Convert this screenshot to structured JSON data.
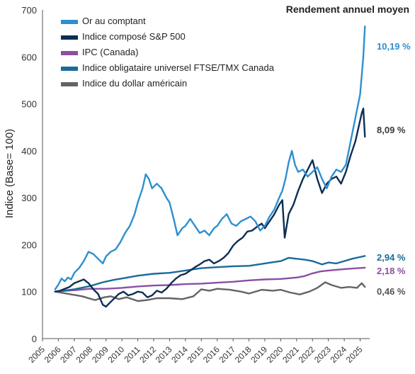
{
  "chart_data": {
    "type": "line",
    "title": "",
    "header": "Rendement annuel moyen",
    "xlabel": "",
    "ylabel": "Indice (Base= 100)",
    "xlim": [
      2005,
      2025.6
    ],
    "ylim": [
      0,
      700
    ],
    "yticks": [
      0,
      100,
      200,
      300,
      400,
      500,
      600,
      700
    ],
    "xticks": [
      "2005",
      "2006",
      "2007",
      "2008",
      "2009",
      "2010",
      "2011",
      "2012",
      "2013",
      "2014",
      "2015",
      "2016",
      "2017",
      "2018",
      "2019",
      "2020",
      "2021",
      "2022",
      "2023",
      "2024",
      "2025"
    ],
    "grid": false,
    "legend_position": "top-left",
    "series": [
      {
        "name": "Or au comptant",
        "color": "#2e8fcf",
        "return": "10,19 %",
        "x": [
          2005.8,
          2006.0,
          2006.2,
          2006.4,
          2006.6,
          2006.8,
          2007.0,
          2007.3,
          2007.6,
          2007.9,
          2008.2,
          2008.5,
          2008.8,
          2009.0,
          2009.3,
          2009.6,
          2009.9,
          2010.2,
          2010.5,
          2010.8,
          2011.0,
          2011.3,
          2011.5,
          2011.7,
          2011.9,
          2012.2,
          2012.5,
          2012.8,
          2013.0,
          2013.3,
          2013.5,
          2013.8,
          2014.0,
          2014.3,
          2014.6,
          2014.9,
          2015.2,
          2015.5,
          2015.8,
          2016.0,
          2016.3,
          2016.6,
          2016.9,
          2017.2,
          2017.5,
          2017.8,
          2018.1,
          2018.4,
          2018.7,
          2019.0,
          2019.3,
          2019.6,
          2019.9,
          2020.1,
          2020.3,
          2020.5,
          2020.7,
          2020.9,
          2021.1,
          2021.4,
          2021.7,
          2022.0,
          2022.3,
          2022.6,
          2022.9,
          2023.2,
          2023.5,
          2023.8,
          2024.1,
          2024.4,
          2024.7,
          2025.0,
          2025.2,
          2025.3
        ],
        "values": [
          105,
          115,
          128,
          122,
          130,
          126,
          140,
          150,
          165,
          185,
          180,
          170,
          160,
          175,
          185,
          190,
          205,
          225,
          240,
          265,
          290,
          320,
          350,
          340,
          320,
          330,
          320,
          300,
          290,
          250,
          220,
          235,
          240,
          255,
          240,
          225,
          230,
          220,
          235,
          240,
          255,
          265,
          245,
          240,
          250,
          255,
          260,
          250,
          230,
          240,
          260,
          275,
          300,
          315,
          340,
          375,
          400,
          370,
          355,
          360,
          345,
          355,
          365,
          340,
          320,
          345,
          360,
          355,
          370,
          420,
          470,
          520,
          600,
          665
        ]
      },
      {
        "name": "Indice composé S&P 500",
        "color": "#0d2e52",
        "return": "8,09 %",
        "x": [
          2005.8,
          2006.1,
          2006.4,
          2006.7,
          2007.0,
          2007.3,
          2007.6,
          2007.9,
          2008.2,
          2008.5,
          2008.8,
          2009.0,
          2009.2,
          2009.5,
          2009.8,
          2010.1,
          2010.4,
          2010.7,
          2011.0,
          2011.3,
          2011.6,
          2011.9,
          2012.2,
          2012.5,
          2012.8,
          2013.1,
          2013.4,
          2013.7,
          2014.0,
          2014.3,
          2014.6,
          2014.9,
          2015.2,
          2015.5,
          2015.8,
          2016.1,
          2016.4,
          2016.7,
          2017.0,
          2017.3,
          2017.6,
          2017.9,
          2018.2,
          2018.5,
          2018.8,
          2019.0,
          2019.3,
          2019.6,
          2019.9,
          2020.1,
          2020.25,
          2020.5,
          2020.8,
          2021.1,
          2021.4,
          2021.7,
          2022.0,
          2022.3,
          2022.6,
          2022.9,
          2023.2,
          2023.5,
          2023.8,
          2024.1,
          2024.4,
          2024.7,
          2024.9,
          2025.1,
          2025.2,
          2025.3
        ],
        "values": [
          100,
          102,
          106,
          110,
          118,
          122,
          126,
          118,
          105,
          95,
          72,
          68,
          75,
          85,
          95,
          100,
          92,
          95,
          100,
          98,
          88,
          92,
          102,
          98,
          106,
          118,
          128,
          135,
          138,
          145,
          152,
          158,
          165,
          168,
          160,
          165,
          172,
          182,
          198,
          208,
          215,
          228,
          230,
          238,
          245,
          235,
          250,
          265,
          285,
          295,
          215,
          265,
          285,
          315,
          340,
          360,
          380,
          340,
          310,
          330,
          340,
          345,
          330,
          355,
          390,
          420,
          450,
          480,
          490,
          430
        ]
      },
      {
        "name": "IPC (Canada)",
        "color": "#8b4fa3",
        "return": "2,18 %",
        "x": [
          2005.8,
          2007,
          2008,
          2009,
          2010,
          2011,
          2012,
          2013,
          2014,
          2015,
          2016,
          2017,
          2018,
          2019,
          2020,
          2021,
          2021.5,
          2022,
          2022.5,
          2023,
          2024,
          2025.3
        ],
        "values": [
          100,
          103,
          106,
          106,
          108,
          111,
          113,
          114,
          116,
          117,
          119,
          121,
          124,
          126,
          127,
          130,
          133,
          139,
          143,
          145,
          148,
          151
        ]
      },
      {
        "name": "Indice obligataire universel FTSE/TMX Canada",
        "color": "#1a6b9a",
        "return": "2,94 %",
        "x": [
          2005.8,
          2007,
          2008,
          2008.8,
          2009.5,
          2010,
          2011,
          2012,
          2013,
          2014,
          2015,
          2016,
          2017,
          2018,
          2019,
          2020,
          2020.5,
          2021,
          2021.5,
          2022,
          2022.6,
          2023,
          2023.5,
          2024,
          2024.5,
          2025.3
        ],
        "values": [
          100,
          105,
          112,
          120,
          125,
          128,
          134,
          138,
          140,
          145,
          150,
          152,
          154,
          155,
          160,
          165,
          172,
          170,
          168,
          165,
          158,
          162,
          160,
          165,
          170,
          176
        ]
      },
      {
        "name": "Indice du dollar américain",
        "color": "#646464",
        "return": "0,46 %",
        "x": [
          2005.8,
          2006.5,
          2007.5,
          2008.3,
          2008.9,
          2009.3,
          2009.8,
          2010.3,
          2011.0,
          2011.6,
          2012.2,
          2013.0,
          2013.8,
          2014.5,
          2015.0,
          2015.5,
          2016.0,
          2016.8,
          2017.5,
          2018.0,
          2018.8,
          2019.5,
          2020.0,
          2020.6,
          2021.2,
          2021.8,
          2022.3,
          2022.8,
          2023.2,
          2023.8,
          2024.3,
          2024.8,
          2025.1,
          2025.3
        ],
        "values": [
          100,
          96,
          90,
          82,
          88,
          90,
          84,
          88,
          80,
          82,
          86,
          86,
          84,
          90,
          105,
          102,
          106,
          104,
          100,
          96,
          104,
          102,
          104,
          98,
          94,
          100,
          108,
          120,
          114,
          108,
          110,
          108,
          118,
          110
        ]
      }
    ]
  }
}
